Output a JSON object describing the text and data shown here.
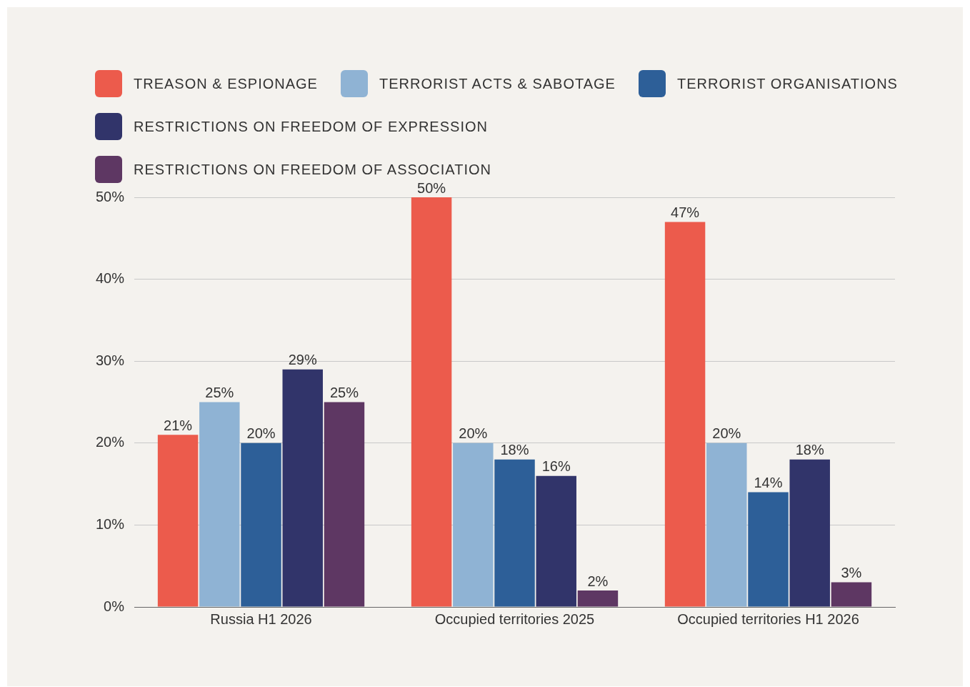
{
  "chart_data": {
    "type": "bar",
    "categories": [
      "Russia H1 2026",
      "Occupied territories 2025",
      "Occupied territories H1 2026"
    ],
    "series": [
      {
        "name": "TREASON & ESPIONAGE",
        "color": "#ec5b4c",
        "values": [
          21,
          50,
          47
        ],
        "value_labels": [
          "21%",
          "50%",
          "47%"
        ]
      },
      {
        "name": "TERRORIST ACTS & SABOTAGE",
        "color": "#8fb3d4",
        "values": [
          25,
          20,
          20
        ],
        "value_labels": [
          "25%",
          "20%",
          "20%"
        ]
      },
      {
        "name": "TERRORIST ORGANISATIONS",
        "color": "#2d5f98",
        "values": [
          20,
          18,
          14
        ],
        "value_labels": [
          "20%",
          "18%",
          "14%"
        ]
      },
      {
        "name": "RESTRICTIONS ON FREEDOM OF EXPRESSION",
        "color": "#31346a",
        "values": [
          29,
          16,
          18
        ],
        "value_labels": [
          "29%",
          "16%",
          "18%"
        ]
      },
      {
        "name": "RESTRICTIONS ON FREEDOM OF ASSOCIATION",
        "color": "#5e3763",
        "values": [
          25,
          2,
          3
        ],
        "value_labels": [
          "25%",
          "2%",
          "3%"
        ]
      }
    ],
    "ylim": [
      0,
      50
    ],
    "yticks": [
      {
        "value": 0,
        "label": "0%"
      },
      {
        "value": 10,
        "label": "10%"
      },
      {
        "value": 20,
        "label": "20%"
      },
      {
        "value": 30,
        "label": "30%"
      },
      {
        "value": 40,
        "label": "40%"
      },
      {
        "value": 50,
        "label": "50%"
      }
    ],
    "grid": "y",
    "legend": "top"
  }
}
